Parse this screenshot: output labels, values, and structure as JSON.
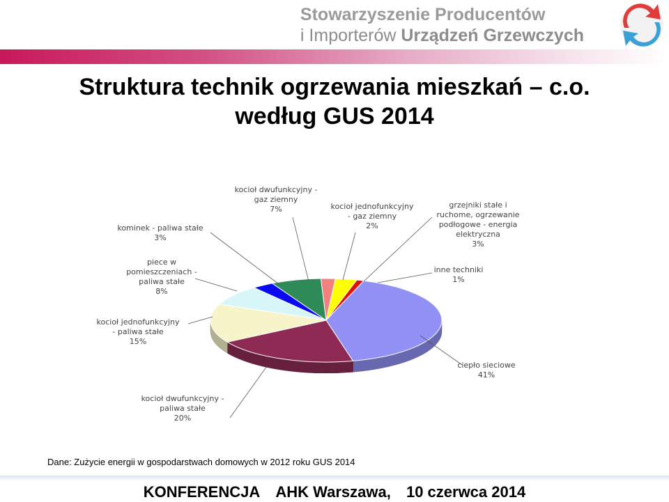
{
  "header": {
    "org_line1": "Stowarzyszenie Producentów",
    "org_line2_a": "i Importerów ",
    "org_line2_b": "Urządzeń Grzewczych",
    "logo_icon": "circular-arrows-logo-icon"
  },
  "title_line1": "Struktura technik ogrzewania mieszkań – c.o.",
  "title_line2": "według GUS 2014",
  "chart_data": {
    "type": "pie",
    "style": "3d",
    "slices": [
      {
        "label_lines": [
          "ciepło sieciowe"
        ],
        "pct_text": "41%",
        "value": 41,
        "color": "#9191f5"
      },
      {
        "label_lines": [
          "kocioł dwufunkcyjny -",
          "paliwa stałe"
        ],
        "pct_text": "20%",
        "value": 20,
        "color": "#8e2b55"
      },
      {
        "label_lines": [
          "kocioł jednofunkcyjny",
          "- paliwa stałe"
        ],
        "pct_text": "15%",
        "value": 15,
        "color": "#f7f4c9"
      },
      {
        "label_lines": [
          "piece w",
          "pomieszczeniach -",
          "paliwa stałe"
        ],
        "pct_text": "8%",
        "value": 8,
        "color": "#d8f6f8"
      },
      {
        "label_lines": [
          "kominek - paliwa stałe"
        ],
        "pct_text": "3%",
        "value": 3,
        "color": "#0a0af0"
      },
      {
        "label_lines": [
          "kocioł dwufunkcyjny -",
          "gaz ziemny"
        ],
        "pct_text": "7%",
        "value": 7,
        "color": "#2e8b57"
      },
      {
        "label_lines": [
          "kocioł jednofunkcyjny",
          "- gaz ziemny"
        ],
        "pct_text": "2%",
        "value": 2,
        "color": "#f58080"
      },
      {
        "label_lines": [
          "grzejniki stałe i",
          "ruchome, ogrzewanie",
          "podłogowe - energia",
          "elektryczna"
        ],
        "pct_text": "3%",
        "value": 3,
        "color": "#ffff00"
      },
      {
        "label_lines": [
          "inne techniki"
        ],
        "pct_text": "1%",
        "value": 1,
        "color": "#e01010"
      }
    ]
  },
  "source_text": "Dane: Zużycie energii w gospodarstwach domowych w 2012 roku GUS 2014",
  "footer": {
    "event": "KONFERENCJA",
    "place": "AHK Warszawa,",
    "date": "10 czerwca 2014"
  }
}
